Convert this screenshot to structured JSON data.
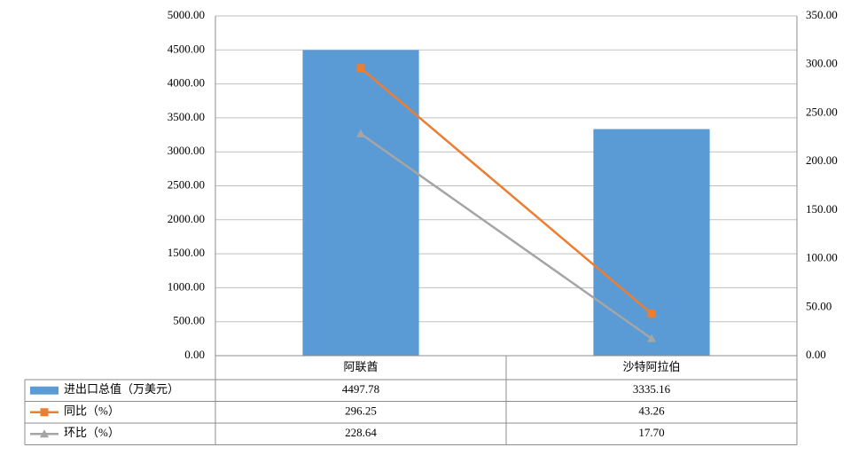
{
  "chart_data": {
    "type": "bar",
    "categories": [
      "阿联酋",
      "沙特阿拉伯"
    ],
    "series": [
      {
        "name": "进出口总值（万美元）",
        "type": "bar",
        "color": "#5b9bd5",
        "values": [
          4497.78,
          3335.16
        ],
        "value_labels": [
          "4497.78",
          "3335.16"
        ]
      },
      {
        "name": "同比（%）",
        "type": "line",
        "axis": "y2",
        "marker": "square",
        "color": "#ed7d31",
        "values": [
          296.25,
          43.26
        ],
        "value_labels": [
          "296.25",
          "43.26"
        ]
      },
      {
        "name": "环比（%）",
        "type": "line",
        "axis": "y2",
        "marker": "triangle",
        "color": "#a5a5a5",
        "values": [
          228.64,
          17.7
        ],
        "value_labels": [
          "228.64",
          "17.70"
        ]
      }
    ],
    "ylim": [
      0,
      5000
    ],
    "yticks": [
      {
        "value": 0,
        "label": "0.00"
      },
      {
        "value": 500,
        "label": "500.00"
      },
      {
        "value": 1000,
        "label": "1000.00"
      },
      {
        "value": 1500,
        "label": "1500.00"
      },
      {
        "value": 2000,
        "label": "2000.00"
      },
      {
        "value": 2500,
        "label": "2500.00"
      },
      {
        "value": 3000,
        "label": "3000.00"
      },
      {
        "value": 3500,
        "label": "3500.00"
      },
      {
        "value": 4000,
        "label": "4000.00"
      },
      {
        "value": 4500,
        "label": "4500.00"
      },
      {
        "value": 5000,
        "label": "5000.00"
      }
    ],
    "y2lim": [
      0,
      350
    ],
    "y2ticks": [
      {
        "value": 0,
        "label": "0.00"
      },
      {
        "value": 50,
        "label": "50.00"
      },
      {
        "value": 100,
        "label": "100.00"
      },
      {
        "value": 150,
        "label": "150.00"
      },
      {
        "value": 200,
        "label": "200.00"
      },
      {
        "value": 250,
        "label": "250.00"
      },
      {
        "value": 300,
        "label": "300.00"
      },
      {
        "value": 350,
        "label": "350.00"
      }
    ],
    "grid": true
  }
}
